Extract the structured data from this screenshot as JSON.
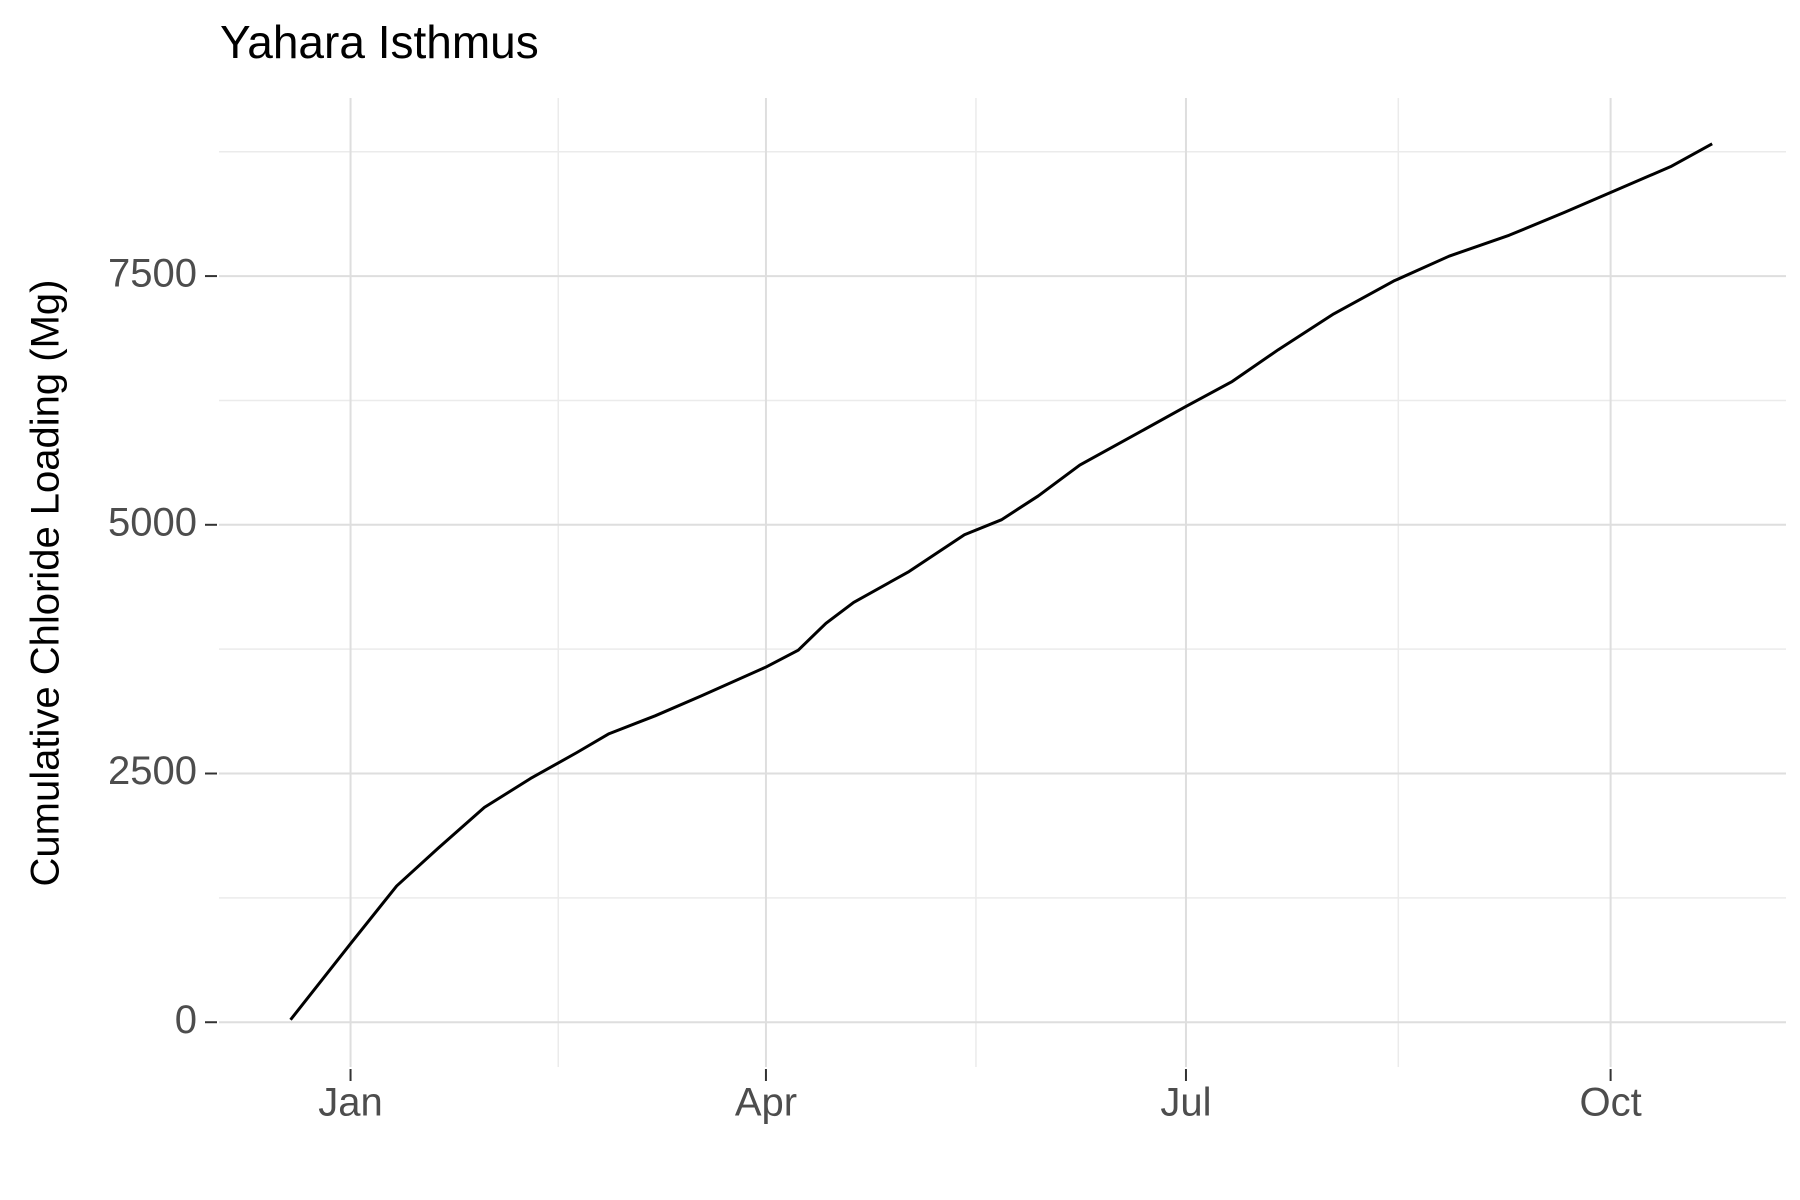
{
  "chart_data": {
    "type": "line",
    "title": "Yahara Isthmus",
    "y_label": "Cumulative Chloride Loading (Mg)",
    "x": [
      -13,
      0,
      10,
      19,
      29,
      39,
      49,
      56,
      66,
      76,
      90,
      97,
      103,
      109,
      121,
      133,
      141,
      149,
      158,
      167,
      181,
      191,
      201,
      213,
      226,
      238,
      251,
      263,
      274,
      286,
      295
    ],
    "series": [
      {
        "color": "#000000",
        "values": [
          25,
          790,
          1370,
          1750,
          2160,
          2450,
          2710,
          2900,
          3080,
          3280,
          3570,
          3740,
          4010,
          4220,
          4530,
          4900,
          5050,
          5290,
          5600,
          5830,
          6190,
          6440,
          6760,
          7120,
          7450,
          7700,
          7910,
          8140,
          8360,
          8600,
          8830
        ]
      }
    ],
    "xlim": [
      -28.5,
      311
    ],
    "xticks": [
      {
        "value": 0,
        "label": "Jan"
      },
      {
        "value": 90,
        "label": "Apr"
      },
      {
        "value": 181,
        "label": "Jul"
      },
      {
        "value": 273,
        "label": "Oct"
      }
    ],
    "ylim": [
      -450,
      9290
    ],
    "yticks": [
      0,
      2500,
      5000,
      7500
    ],
    "grid": true
  }
}
